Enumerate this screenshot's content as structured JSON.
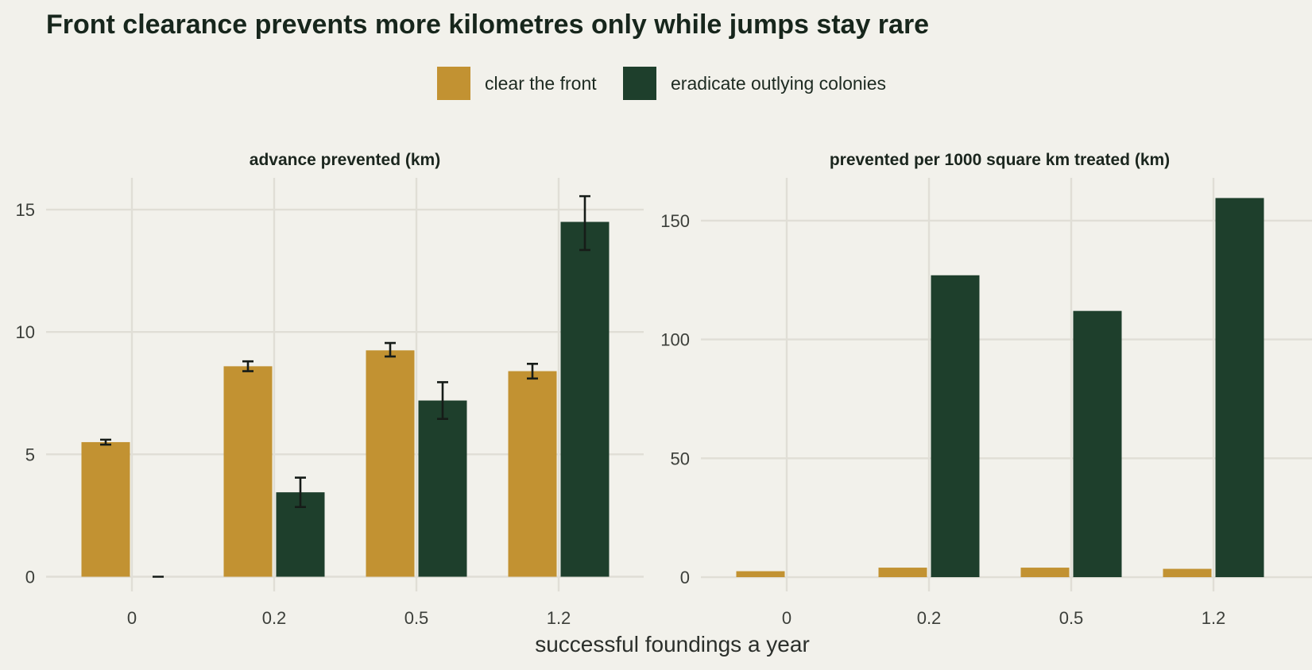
{
  "chart_data": {
    "type": "bar",
    "title": "Front clearance prevents more kilometres only while jumps stay rare",
    "xlabel": "successful foundings a year",
    "categories": [
      "0",
      "0.2",
      "0.5",
      "1.2"
    ],
    "legend_placement": "top-center",
    "series": [
      {
        "name": "clear the front",
        "color": "#c29232"
      },
      {
        "name": "eradicate outlying colonies",
        "color": "#1e3f2c"
      }
    ],
    "panels": [
      {
        "title": "advance prevented (km)",
        "ylim": [
          -0.6,
          16.3
        ],
        "yticks": [
          0,
          5,
          10,
          15
        ],
        "series": [
          {
            "name": "clear the front",
            "values": [
              5.5,
              8.6,
              9.25,
              8.4
            ],
            "error_low": [
              5.4,
              8.4,
              9.0,
              8.1
            ],
            "error_high": [
              5.6,
              8.8,
              9.55,
              8.7
            ]
          },
          {
            "name": "eradicate outlying colonies",
            "values": [
              0,
              3.45,
              7.2,
              14.5
            ],
            "error_low": [
              0,
              2.85,
              6.45,
              13.35
            ],
            "error_high": [
              0,
              4.05,
              7.95,
              15.55
            ]
          }
        ]
      },
      {
        "title": "prevented per 1000 square km treated (km)",
        "ylim": [
          -6,
          168
        ],
        "yticks": [
          0,
          50,
          100,
          150
        ],
        "series": [
          {
            "name": "clear the front",
            "values": [
              2.5,
              4.0,
              4.0,
              3.5
            ]
          },
          {
            "name": "eradicate outlying colonies",
            "values": [
              0,
              127,
              112,
              159.5
            ]
          }
        ]
      }
    ]
  }
}
